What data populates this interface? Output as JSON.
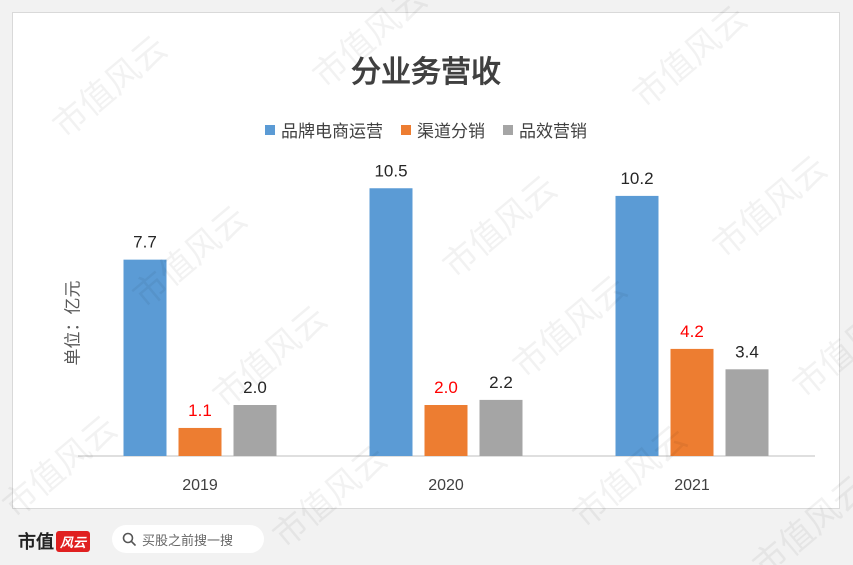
{
  "chart_data": {
    "type": "bar",
    "title": "分业务营收",
    "ylabel": "单位：亿元",
    "categories": [
      "2019",
      "2020",
      "2021"
    ],
    "series": [
      {
        "name": "品牌电商运营",
        "color": "#5b9bd5",
        "values": [
          7.7,
          10.5,
          10.2
        ],
        "labels": [
          "7.7",
          "10.5",
          "10.2"
        ],
        "label_colors": [
          "#262626",
          "#262626",
          "#262626"
        ]
      },
      {
        "name": "渠道分销",
        "color": "#ed7d31",
        "values": [
          1.1,
          2.0,
          4.2
        ],
        "labels": [
          "1.1",
          "2.0",
          "4.2"
        ],
        "label_colors": [
          "#ff0000",
          "#ff0000",
          "#ff0000"
        ]
      },
      {
        "name": "品效营销",
        "color": "#a5a5a5",
        "values": [
          2.0,
          2.2,
          3.4
        ],
        "labels": [
          "2.0",
          "2.2",
          "3.4"
        ],
        "label_colors": [
          "#262626",
          "#262626",
          "#262626"
        ]
      }
    ],
    "ylim": [
      0,
      12
    ],
    "grid": false,
    "legend_position": "top"
  },
  "watermark_text": "市值风云",
  "footer": {
    "brand_text": "市值",
    "brand_badge": "风云",
    "search_placeholder": "买股之前搜一搜"
  }
}
